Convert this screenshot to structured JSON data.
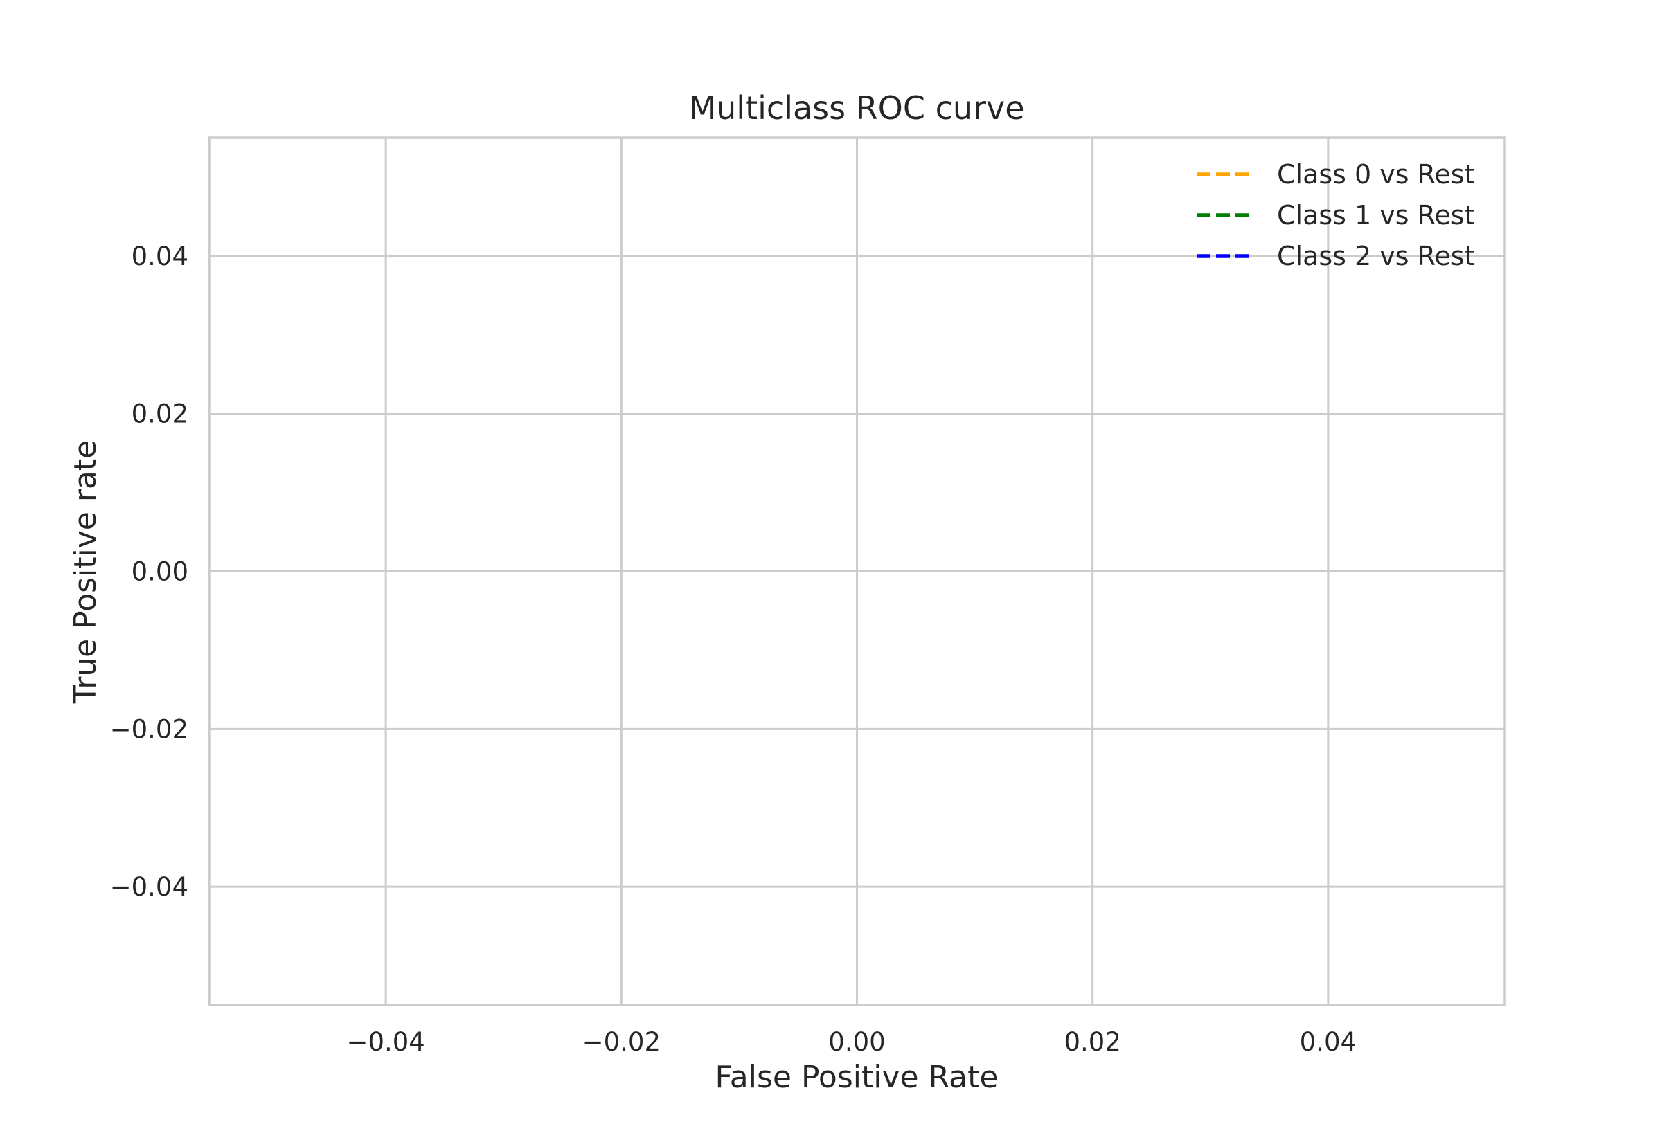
{
  "chart_data": {
    "type": "line",
    "title": "Multiclass ROC curve",
    "xlabel": "False Positive Rate",
    "ylabel": "True Positive rate",
    "xlim": [
      -0.055,
      0.055
    ],
    "ylim": [
      -0.055,
      0.055
    ],
    "xticks": [
      -0.04,
      -0.02,
      0.0,
      0.02,
      0.04
    ],
    "yticks": [
      -0.04,
      -0.02,
      0.0,
      0.02,
      0.04
    ],
    "xtick_labels": [
      "−0.04",
      "−0.02",
      "0.00",
      "0.02",
      "0.04"
    ],
    "ytick_labels": [
      "−0.04",
      "−0.02",
      "0.00",
      "0.02",
      "0.04"
    ],
    "grid": true,
    "legend_position": "top-right",
    "series": [
      {
        "name": "Class 0 vs Rest",
        "color": "#ffa500",
        "linestyle": "dashed",
        "x": [],
        "y": []
      },
      {
        "name": "Class 1 vs Rest",
        "color": "#008000",
        "linestyle": "dashed",
        "x": [],
        "y": []
      },
      {
        "name": "Class 2 vs Rest",
        "color": "#0000ff",
        "linestyle": "dashed",
        "x": [],
        "y": []
      }
    ]
  }
}
